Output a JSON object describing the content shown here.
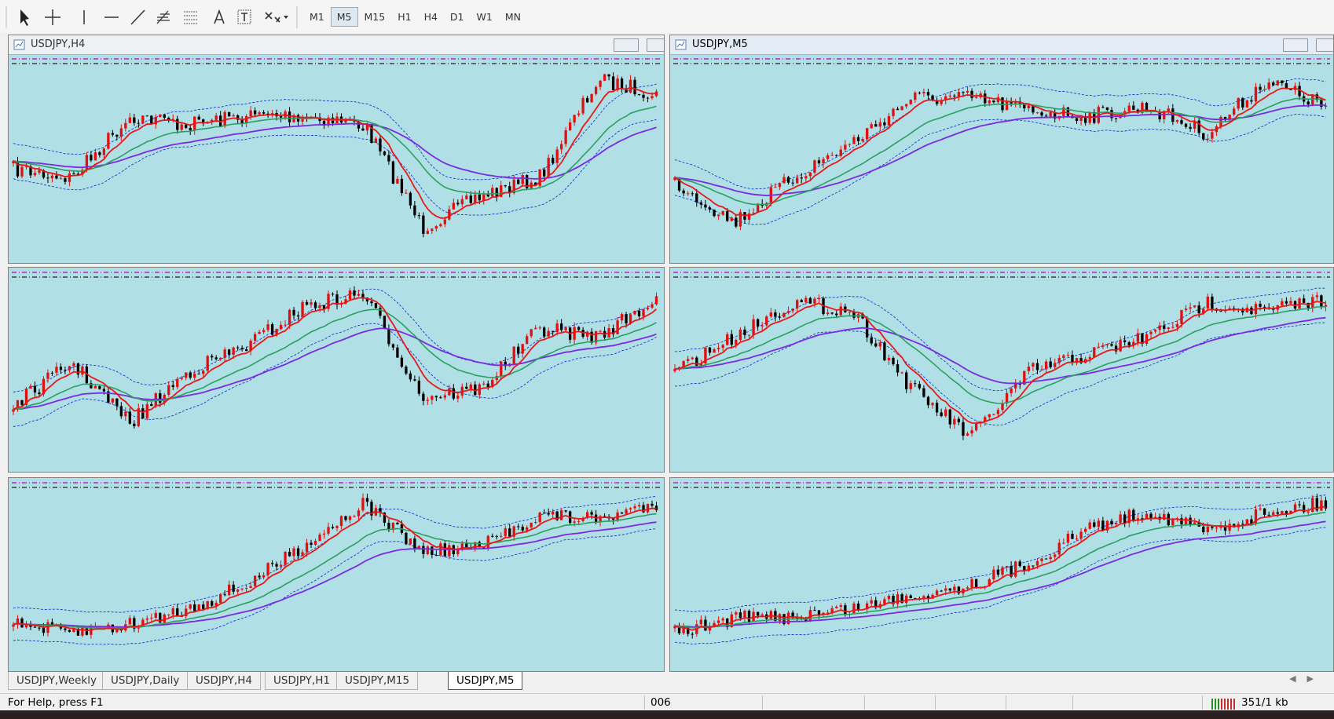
{
  "toolbar": {
    "timeframes": [
      "M1",
      "M5",
      "M15",
      "H1",
      "H4",
      "D1",
      "W1",
      "MN"
    ]
  },
  "windows": [
    {
      "title": "USDJPY,H4"
    },
    {
      "title": "USDJPY,M5"
    }
  ],
  "tabs": [
    "USDJPY,Weekly",
    "USDJPY,Daily",
    "USDJPY,H4",
    "USDJPY,H1",
    "USDJPY,M15",
    "USDJPY,M5"
  ],
  "status": {
    "help": "For Help, press F1",
    "profile": "006",
    "traffic": "351/1 kb"
  }
}
